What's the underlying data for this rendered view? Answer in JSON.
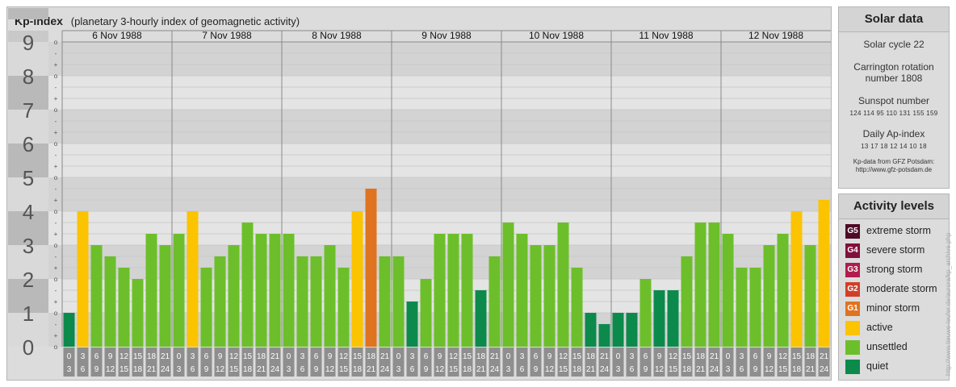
{
  "title": {
    "main": "Kp-index",
    "sub": "(planetary 3-hourly index of geomagnetic activity)"
  },
  "colors": {
    "quiet": "#0c8a4c",
    "unsettled": "#6cbf2a",
    "active": "#fbc300",
    "minor_storm": "#e07320",
    "moderate_storm": "#d23f28",
    "strong_storm": "#b01c4e",
    "severe_storm": "#80103c",
    "extreme_storm": "#4e0a26"
  },
  "chart_data": {
    "type": "bar",
    "ylabel_ticks": [
      "0",
      "1",
      "2",
      "3",
      "4",
      "5",
      "6",
      "7",
      "8",
      "9"
    ],
    "ylim": [
      0,
      9
    ],
    "subticks": [
      "o",
      "+",
      "-"
    ],
    "days": [
      "6 Nov 1988",
      "7 Nov 1988",
      "8 Nov 1988",
      "9 Nov 1988",
      "10 Nov 1988",
      "11 Nov 1988",
      "12 Nov 1988"
    ],
    "hour_labels": [
      [
        "0",
        "3"
      ],
      [
        "3",
        "6"
      ],
      [
        "6",
        "9"
      ],
      [
        "9",
        "12"
      ],
      [
        "12",
        "15"
      ],
      [
        "15",
        "18"
      ],
      [
        "18",
        "21"
      ],
      [
        "21",
        "24"
      ]
    ],
    "values": [
      1.0,
      4.0,
      3.0,
      2.667,
      2.333,
      2.0,
      3.333,
      3.0,
      3.333,
      4.0,
      2.333,
      2.667,
      3.0,
      3.667,
      3.333,
      3.333,
      3.333,
      2.667,
      2.667,
      3.0,
      2.333,
      4.0,
      4.667,
      2.667,
      2.667,
      1.333,
      2.0,
      3.333,
      3.333,
      3.333,
      1.667,
      2.667,
      3.667,
      3.333,
      3.0,
      3.0,
      3.667,
      2.333,
      1.0,
      0.667,
      1.0,
      1.0,
      2.0,
      1.667,
      1.667,
      2.667,
      3.667,
      3.667,
      3.333,
      2.333,
      2.333,
      3.0,
      3.333,
      4.0,
      3.0,
      4.333
    ]
  },
  "solar": {
    "title": "Solar data",
    "cycle": "Solar cycle 22",
    "carrington_1": "Carrington rotation",
    "carrington_2": "number 1808",
    "sunspot_title": "Sunspot number",
    "sunspot_values": "124 114 95 110 131 155 159",
    "ap_title": "Daily Ap-index",
    "ap_values": "13 17 18 12 14 10 18",
    "source_1": "Kp-data from GFZ Potsdam:",
    "source_2": "http://www.gfz-potsdam.de"
  },
  "levels": {
    "title": "Activity levels",
    "items": [
      {
        "code": "G5",
        "label": "extreme storm",
        "color": "#4e0a26"
      },
      {
        "code": "G4",
        "label": "severe storm",
        "color": "#80103c"
      },
      {
        "code": "G3",
        "label": "strong storm",
        "color": "#b01c4e"
      },
      {
        "code": "G2",
        "label": "moderate storm",
        "color": "#d23f28"
      },
      {
        "code": "G1",
        "label": "minor storm",
        "color": "#e07320"
      },
      {
        "code": "",
        "label": "active",
        "color": "#fbc300"
      },
      {
        "code": "",
        "label": "unsettled",
        "color": "#6cbf2a"
      },
      {
        "code": "",
        "label": "quiet",
        "color": "#0c8a4c"
      }
    ]
  },
  "credit": "http://www.tieuwe-leufer.de/aurora/kp_archive.php"
}
